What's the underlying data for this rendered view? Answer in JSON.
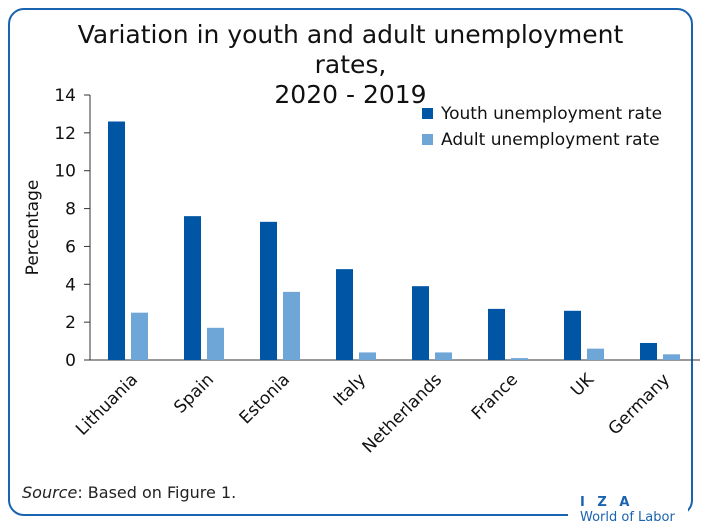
{
  "title_line1": "Variation in youth and adult unemployment rates,",
  "title_line2": "2020 - 2019",
  "source_label": "Source",
  "source_text": ": Based on Figure 1.",
  "brand_top": "I Z A",
  "brand_bottom": "World of Labor",
  "colors": {
    "youth": "#0055a4",
    "adult": "#6ea6d8",
    "frame": "#1a63b0"
  },
  "chart_data": {
    "type": "bar",
    "title": "Variation in youth and adult unemployment rates, 2020 - 2019",
    "ylabel": "Percentage",
    "xlabel": "",
    "ylim": [
      0,
      14
    ],
    "yticks": [
      0,
      2,
      4,
      6,
      8,
      10,
      12,
      14
    ],
    "legend_position": "top-right",
    "grid": false,
    "categories": [
      "Lithuania",
      "Spain",
      "Estonia",
      "Italy",
      "Netherlands",
      "France",
      "UK",
      "Germany"
    ],
    "series": [
      {
        "name": "Youth unemployment rate",
        "values": [
          12.6,
          7.6,
          7.3,
          4.8,
          3.9,
          2.7,
          2.6,
          0.9
        ]
      },
      {
        "name": "Adult unemployment rate",
        "values": [
          2.5,
          1.7,
          3.6,
          0.4,
          0.4,
          0.1,
          0.6,
          0.3
        ]
      }
    ]
  }
}
